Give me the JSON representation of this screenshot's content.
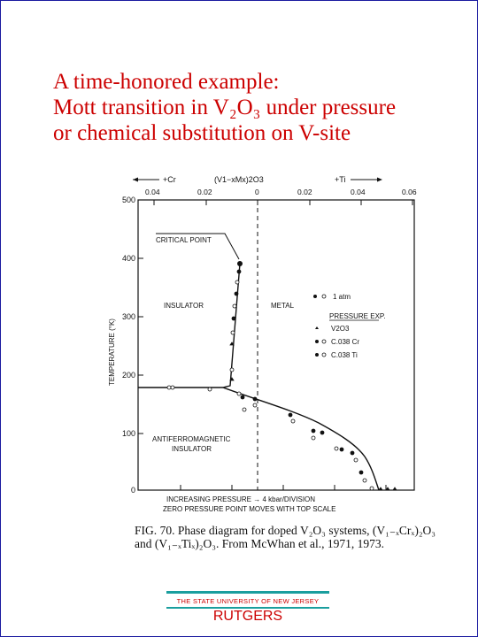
{
  "slide": {
    "title_lines": [
      "A time-honored example:",
      "Mott transition in V₂O₃ under pressure",
      "or chemical substitution on V-site"
    ]
  },
  "figure": {
    "top_axis": {
      "cr_label": "+Cr",
      "ti_label": "+Ti",
      "composition_label": "(V1−xMx)2O3",
      "tick_labels": [
        "0.04",
        "0.02",
        "0",
        "0.02",
        "0.04",
        "0.06"
      ]
    },
    "y_axis": {
      "label": "TEMPERATURE (°K)",
      "tick_labels": [
        "500",
        "400",
        "300",
        "200",
        "100",
        "0"
      ]
    },
    "annotations": {
      "critical_point": "CRITICAL POINT",
      "insulator": "INSULATOR",
      "metal": "METAL",
      "afm_line1": "ANTIFERROMAGNETIC",
      "afm_line2": "INSULATOR"
    },
    "legend": {
      "atm": "1 atm",
      "header": "PRESSURE EXP.",
      "items": [
        "V2O3",
        "C.038 Cr",
        "C.038 Ti"
      ]
    },
    "bottom_label_1": "INCREASING PRESSURE → 4 kbar/DIVISION",
    "bottom_label_2": "ZERO PRESSURE POINT MOVES WITH TOP SCALE",
    "caption": "FIG. 70. Phase diagram for doped V₂O₃ systems, (V₁₋ₓCrₓ)₂O₃ and (V₁₋ₓTiₓ)₂O₃. From McWhan et al., 1971, 1973."
  },
  "footer": {
    "university": "THE STATE UNIVERSITY OF NEW JERSEY",
    "name": "RUTGERS"
  },
  "colors": {
    "title": "#cc0000",
    "footer_text": "#cc0000",
    "footer_rule": "#1a9e9e",
    "frame": "#1a1aa0"
  }
}
